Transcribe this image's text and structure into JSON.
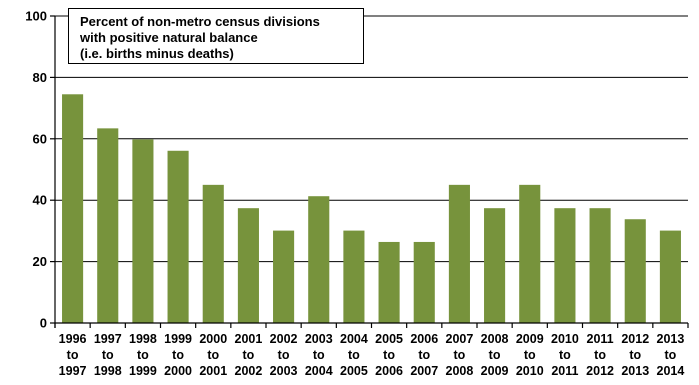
{
  "chart_data": {
    "type": "bar",
    "title_lines": [
      "Percent of non-metro census divisions",
      "with positive natural balance",
      "(i.e. births minus deaths)"
    ],
    "categories": [
      [
        "1996",
        "to",
        "1997"
      ],
      [
        "1997",
        "to",
        "1998"
      ],
      [
        "1998",
        "to",
        "1999"
      ],
      [
        "1999",
        "to",
        "2000"
      ],
      [
        "2000",
        "to",
        "2001"
      ],
      [
        "2001",
        "to",
        "2002"
      ],
      [
        "2002",
        "to",
        "2003"
      ],
      [
        "2003",
        "to",
        "2004"
      ],
      [
        "2004",
        "to",
        "2005"
      ],
      [
        "2005",
        "to",
        "2006"
      ],
      [
        "2006",
        "to",
        "2007"
      ],
      [
        "2007",
        "to",
        "2008"
      ],
      [
        "2008",
        "to",
        "2009"
      ],
      [
        "2009",
        "to",
        "2010"
      ],
      [
        "2010",
        "to",
        "2011"
      ],
      [
        "2011",
        "to",
        "2012"
      ],
      [
        "2012",
        "to",
        "2013"
      ],
      [
        "2013",
        "to",
        "2014"
      ]
    ],
    "values": [
      74.5,
      63.4,
      59.8,
      56.1,
      45,
      37.4,
      30.1,
      41.3,
      30.1,
      26.4,
      26.4,
      45,
      37.4,
      45,
      37.4,
      37.4,
      33.8,
      30.1
    ],
    "ylim": [
      0,
      100
    ],
    "yticks": [
      0,
      20,
      40,
      60,
      80,
      100
    ],
    "grid": true,
    "legend_position": "top-left",
    "bar_color": "#77933C"
  }
}
